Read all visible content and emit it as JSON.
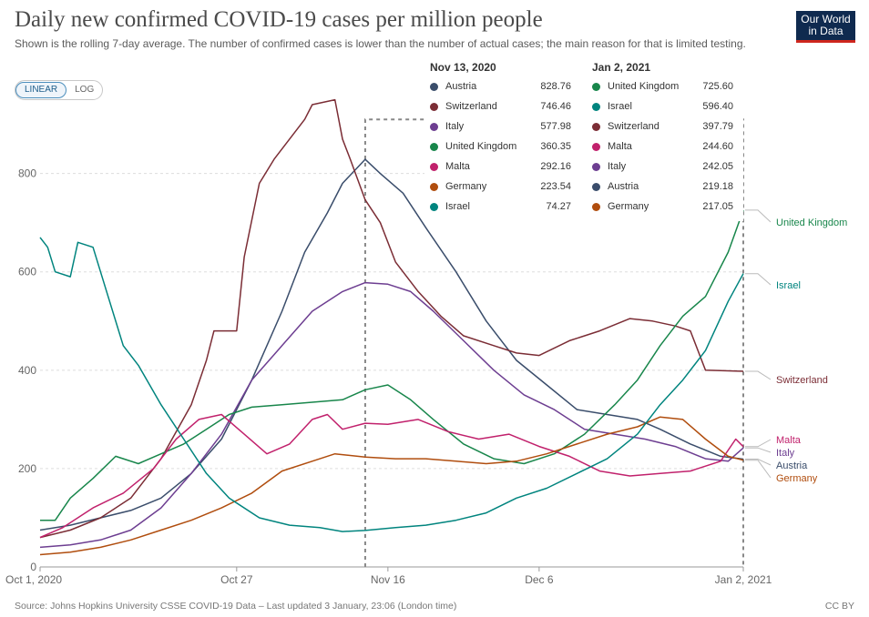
{
  "title": "Daily new confirmed COVID-19 cases per million people",
  "subtitle": "Shown is the rolling 7-day average. The number of confirmed cases is lower than the number of actual cases; the main reason for that is limited testing.",
  "logo": {
    "line1": "Our World",
    "line2": "in Data"
  },
  "scale_toggle": {
    "linear": "LINEAR",
    "log": "LOG",
    "selected": "LINEAR"
  },
  "source": "Source: Johns Hopkins University CSSE COVID-19 Data – Last updated 3 January, 23:06 (London time)",
  "license": "CC BY",
  "tooltip": {
    "left": {
      "date": "Nov 13, 2020",
      "rows": [
        {
          "name": "Austria",
          "value": "828.76",
          "color": "#3a4d6b"
        },
        {
          "name": "Switzerland",
          "value": "746.46",
          "color": "#7b2d35"
        },
        {
          "name": "Italy",
          "value": "577.98",
          "color": "#6d3e91"
        },
        {
          "name": "United Kingdom",
          "value": "360.35",
          "color": "#18864b"
        },
        {
          "name": "Malta",
          "value": "292.16",
          "color": "#c1216c"
        },
        {
          "name": "Germany",
          "value": "223.54",
          "color": "#b04d0e"
        },
        {
          "name": "Israel",
          "value": "74.27",
          "color": "#00847e"
        }
      ]
    },
    "right": {
      "date": "Jan 2, 2021",
      "rows": [
        {
          "name": "United Kingdom",
          "value": "725.60",
          "color": "#18864b"
        },
        {
          "name": "Israel",
          "value": "596.40",
          "color": "#00847e"
        },
        {
          "name": "Switzerland",
          "value": "397.79",
          "color": "#7b2d35"
        },
        {
          "name": "Malta",
          "value": "244.60",
          "color": "#c1216c"
        },
        {
          "name": "Italy",
          "value": "242.05",
          "color": "#6d3e91"
        },
        {
          "name": "Austria",
          "value": "219.18",
          "color": "#3a4d6b"
        },
        {
          "name": "Germany",
          "value": "217.05",
          "color": "#b04d0e"
        }
      ]
    }
  },
  "chart_data": {
    "type": "line",
    "x_unit": "date",
    "x_ticks": [
      {
        "label": "Oct 1, 2020",
        "date": "2020-10-01"
      },
      {
        "label": "Oct 27",
        "date": "2020-10-27"
      },
      {
        "label": "Nov 16",
        "date": "2020-11-16"
      },
      {
        "label": "Dec 6",
        "date": "2020-12-06"
      },
      {
        "label": "Jan 2, 2021",
        "date": "2021-01-02"
      }
    ],
    "y_ticks": [
      0,
      200,
      400,
      600,
      800
    ],
    "ylim": [
      0,
      940
    ],
    "xlim": [
      "2020-10-01",
      "2021-01-02"
    ],
    "grid": "horizontal dashed",
    "highlight_dates": [
      "2020-11-13",
      "2021-01-02"
    ],
    "series": [
      {
        "name": "Austria",
        "color": "#3a4d6b",
        "points": [
          [
            "2020-10-01",
            75
          ],
          [
            "2020-10-05",
            85
          ],
          [
            "2020-10-09",
            100
          ],
          [
            "2020-10-13",
            115
          ],
          [
            "2020-10-17",
            140
          ],
          [
            "2020-10-21",
            190
          ],
          [
            "2020-10-25",
            260
          ],
          [
            "2020-10-29",
            380
          ],
          [
            "2020-11-02",
            520
          ],
          [
            "2020-11-05",
            640
          ],
          [
            "2020-11-08",
            720
          ],
          [
            "2020-11-10",
            780
          ],
          [
            "2020-11-13",
            828.76
          ],
          [
            "2020-11-15",
            800
          ],
          [
            "2020-11-18",
            760
          ],
          [
            "2020-11-21",
            690
          ],
          [
            "2020-11-25",
            600
          ],
          [
            "2020-11-29",
            500
          ],
          [
            "2020-12-03",
            420
          ],
          [
            "2020-12-07",
            370
          ],
          [
            "2020-12-11",
            320
          ],
          [
            "2020-12-15",
            310
          ],
          [
            "2020-12-19",
            300
          ],
          [
            "2020-12-22",
            280
          ],
          [
            "2020-12-26",
            250
          ],
          [
            "2020-12-30",
            225
          ],
          [
            "2021-01-02",
            219.18
          ]
        ]
      },
      {
        "name": "Switzerland",
        "color": "#7b2d35",
        "points": [
          [
            "2020-10-01",
            60
          ],
          [
            "2020-10-05",
            75
          ],
          [
            "2020-10-09",
            100
          ],
          [
            "2020-10-13",
            140
          ],
          [
            "2020-10-17",
            220
          ],
          [
            "2020-10-21",
            330
          ],
          [
            "2020-10-23",
            420
          ],
          [
            "2020-10-24",
            480
          ],
          [
            "2020-10-27",
            480
          ],
          [
            "2020-10-28",
            630
          ],
          [
            "2020-10-30",
            780
          ],
          [
            "2020-11-01",
            830
          ],
          [
            "2020-11-03",
            870
          ],
          [
            "2020-11-05",
            910
          ],
          [
            "2020-11-06",
            940
          ],
          [
            "2020-11-09",
            950
          ],
          [
            "2020-11-10",
            870
          ],
          [
            "2020-11-11",
            830
          ],
          [
            "2020-11-13",
            746.46
          ],
          [
            "2020-11-15",
            700
          ],
          [
            "2020-11-17",
            620
          ],
          [
            "2020-11-20",
            560
          ],
          [
            "2020-11-23",
            510
          ],
          [
            "2020-11-26",
            470
          ],
          [
            "2020-11-30",
            450
          ],
          [
            "2020-12-03",
            435
          ],
          [
            "2020-12-06",
            430
          ],
          [
            "2020-12-10",
            460
          ],
          [
            "2020-12-14",
            480
          ],
          [
            "2020-12-18",
            505
          ],
          [
            "2020-12-21",
            500
          ],
          [
            "2020-12-24",
            490
          ],
          [
            "2020-12-26",
            480
          ],
          [
            "2020-12-28",
            400
          ],
          [
            "2021-01-02",
            397.79
          ]
        ]
      },
      {
        "name": "Italy",
        "color": "#6d3e91",
        "points": [
          [
            "2020-10-01",
            40
          ],
          [
            "2020-10-05",
            45
          ],
          [
            "2020-10-09",
            55
          ],
          [
            "2020-10-13",
            75
          ],
          [
            "2020-10-17",
            120
          ],
          [
            "2020-10-21",
            190
          ],
          [
            "2020-10-25",
            270
          ],
          [
            "2020-10-29",
            380
          ],
          [
            "2020-11-02",
            450
          ],
          [
            "2020-11-06",
            520
          ],
          [
            "2020-11-10",
            560
          ],
          [
            "2020-11-13",
            577.98
          ],
          [
            "2020-11-16",
            575
          ],
          [
            "2020-11-19",
            560
          ],
          [
            "2020-11-22",
            520
          ],
          [
            "2020-11-26",
            460
          ],
          [
            "2020-11-30",
            400
          ],
          [
            "2020-12-04",
            350
          ],
          [
            "2020-12-08",
            320
          ],
          [
            "2020-12-12",
            280
          ],
          [
            "2020-12-16",
            270
          ],
          [
            "2020-12-20",
            260
          ],
          [
            "2020-12-24",
            245
          ],
          [
            "2020-12-28",
            220
          ],
          [
            "2020-12-31",
            215
          ],
          [
            "2021-01-02",
            242.05
          ]
        ]
      },
      {
        "name": "United Kingdom",
        "color": "#18864b",
        "points": [
          [
            "2020-10-01",
            95
          ],
          [
            "2020-10-03",
            95
          ],
          [
            "2020-10-05",
            140
          ],
          [
            "2020-10-08",
            180
          ],
          [
            "2020-10-11",
            225
          ],
          [
            "2020-10-14",
            210
          ],
          [
            "2020-10-17",
            230
          ],
          [
            "2020-10-20",
            250
          ],
          [
            "2020-10-23",
            280
          ],
          [
            "2020-10-26",
            310
          ],
          [
            "2020-10-29",
            325
          ],
          [
            "2020-11-02",
            330
          ],
          [
            "2020-11-06",
            335
          ],
          [
            "2020-11-10",
            340
          ],
          [
            "2020-11-13",
            360.35
          ],
          [
            "2020-11-16",
            370
          ],
          [
            "2020-11-19",
            340
          ],
          [
            "2020-11-22",
            300
          ],
          [
            "2020-11-26",
            250
          ],
          [
            "2020-11-30",
            220
          ],
          [
            "2020-12-04",
            210
          ],
          [
            "2020-12-08",
            230
          ],
          [
            "2020-12-12",
            270
          ],
          [
            "2020-12-16",
            330
          ],
          [
            "2020-12-19",
            380
          ],
          [
            "2020-12-22",
            450
          ],
          [
            "2020-12-25",
            510
          ],
          [
            "2020-12-28",
            550
          ],
          [
            "2020-12-31",
            640
          ],
          [
            "2021-01-02",
            725.6
          ]
        ]
      },
      {
        "name": "Malta",
        "color": "#c1216c",
        "points": [
          [
            "2020-10-01",
            60
          ],
          [
            "2020-10-04",
            80
          ],
          [
            "2020-10-08",
            120
          ],
          [
            "2020-10-12",
            150
          ],
          [
            "2020-10-16",
            200
          ],
          [
            "2020-10-19",
            260
          ],
          [
            "2020-10-22",
            300
          ],
          [
            "2020-10-25",
            310
          ],
          [
            "2020-10-28",
            270
          ],
          [
            "2020-10-31",
            230
          ],
          [
            "2020-11-03",
            250
          ],
          [
            "2020-11-06",
            300
          ],
          [
            "2020-11-08",
            310
          ],
          [
            "2020-11-10",
            280
          ],
          [
            "2020-11-13",
            292.16
          ],
          [
            "2020-11-16",
            290
          ],
          [
            "2020-11-20",
            300
          ],
          [
            "2020-11-24",
            275
          ],
          [
            "2020-11-28",
            260
          ],
          [
            "2020-12-02",
            270
          ],
          [
            "2020-12-06",
            245
          ],
          [
            "2020-12-10",
            225
          ],
          [
            "2020-12-14",
            195
          ],
          [
            "2020-12-18",
            185
          ],
          [
            "2020-12-22",
            190
          ],
          [
            "2020-12-26",
            195
          ],
          [
            "2020-12-30",
            215
          ],
          [
            "2021-01-01",
            260
          ],
          [
            "2021-01-02",
            244.6
          ]
        ]
      },
      {
        "name": "Germany",
        "color": "#b04d0e",
        "points": [
          [
            "2020-10-01",
            25
          ],
          [
            "2020-10-05",
            30
          ],
          [
            "2020-10-09",
            40
          ],
          [
            "2020-10-13",
            55
          ],
          [
            "2020-10-17",
            75
          ],
          [
            "2020-10-21",
            95
          ],
          [
            "2020-10-25",
            120
          ],
          [
            "2020-10-29",
            150
          ],
          [
            "2020-11-02",
            195
          ],
          [
            "2020-11-06",
            215
          ],
          [
            "2020-11-09",
            230
          ],
          [
            "2020-11-13",
            223.54
          ],
          [
            "2020-11-17",
            220
          ],
          [
            "2020-11-21",
            220
          ],
          [
            "2020-11-25",
            215
          ],
          [
            "2020-11-29",
            210
          ],
          [
            "2020-12-03",
            215
          ],
          [
            "2020-12-07",
            230
          ],
          [
            "2020-12-11",
            250
          ],
          [
            "2020-12-15",
            270
          ],
          [
            "2020-12-19",
            285
          ],
          [
            "2020-12-22",
            305
          ],
          [
            "2020-12-25",
            300
          ],
          [
            "2020-12-28",
            260
          ],
          [
            "2020-12-31",
            225
          ],
          [
            "2021-01-02",
            217.05
          ]
        ]
      },
      {
        "name": "Israel",
        "color": "#00847e",
        "points": [
          [
            "2020-10-01",
            670
          ],
          [
            "2020-10-02",
            650
          ],
          [
            "2020-10-03",
            600
          ],
          [
            "2020-10-05",
            590
          ],
          [
            "2020-10-06",
            660
          ],
          [
            "2020-10-08",
            650
          ],
          [
            "2020-10-10",
            550
          ],
          [
            "2020-10-12",
            450
          ],
          [
            "2020-10-14",
            410
          ],
          [
            "2020-10-17",
            330
          ],
          [
            "2020-10-20",
            260
          ],
          [
            "2020-10-23",
            190
          ],
          [
            "2020-10-26",
            140
          ],
          [
            "2020-10-30",
            100
          ],
          [
            "2020-11-03",
            85
          ],
          [
            "2020-11-07",
            80
          ],
          [
            "2020-11-10",
            72
          ],
          [
            "2020-11-13",
            74.27
          ],
          [
            "2020-11-17",
            80
          ],
          [
            "2020-11-21",
            85
          ],
          [
            "2020-11-25",
            95
          ],
          [
            "2020-11-29",
            110
          ],
          [
            "2020-12-03",
            140
          ],
          [
            "2020-12-07",
            160
          ],
          [
            "2020-12-11",
            190
          ],
          [
            "2020-12-15",
            220
          ],
          [
            "2020-12-19",
            270
          ],
          [
            "2020-12-22",
            330
          ],
          [
            "2020-12-25",
            380
          ],
          [
            "2020-12-28",
            440
          ],
          [
            "2020-12-31",
            540
          ],
          [
            "2021-01-02",
            596.4
          ]
        ]
      }
    ],
    "end_labels": [
      {
        "name": "United Kingdom",
        "value": 725.6
      },
      {
        "name": "Israel",
        "value": 596.4
      },
      {
        "name": "Switzerland",
        "value": 397.79
      },
      {
        "name": "Malta",
        "value": 244.6
      },
      {
        "name": "Italy",
        "value": 242.05
      },
      {
        "name": "Austria",
        "value": 219.18
      },
      {
        "name": "Germany",
        "value": 217.05
      }
    ]
  }
}
